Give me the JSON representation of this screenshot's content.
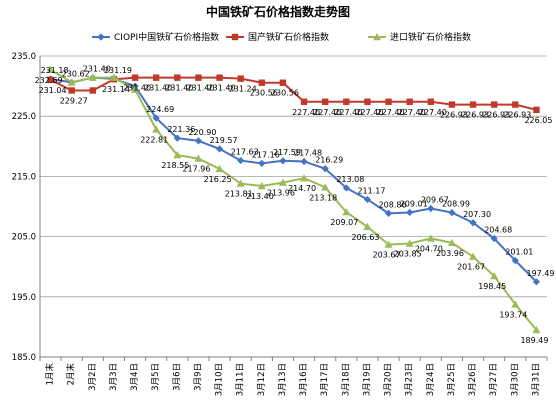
{
  "chart_data": {
    "type": "line",
    "title": "中国铁矿石价格指数走势图",
    "categories": [
      "1月末",
      "2月末",
      "3月2日",
      "3月3日",
      "3月4日",
      "3月5日",
      "3月6日",
      "3月9日",
      "3月10日",
      "3月11日",
      "3月12日",
      "3月13日",
      "3月16日",
      "3月17日",
      "3月18日",
      "3月19日",
      "3月20日",
      "3月23日",
      "3月24日",
      "3月25日",
      "3月26日",
      "3月27日",
      "3月30日",
      "3月31日"
    ],
    "ylim": [
      185.0,
      235.0
    ],
    "yticks": [
      "185.0",
      "195.0",
      "205.0",
      "215.0",
      "225.0",
      "235.0"
    ],
    "grid": "horizontal",
    "legend_position": "top-right",
    "series": [
      {
        "name": "CIOPI中国铁矿石价格指数",
        "color": "#4472c4",
        "marker": "diamond",
        "values": [
          231.18,
          230.62,
          231.4,
          231.19,
          229.99,
          224.69,
          221.36,
          220.9,
          219.57,
          217.63,
          217.16,
          217.59,
          217.48,
          216.29,
          213.08,
          211.17,
          208.86,
          209.01,
          209.67,
          208.99,
          207.3,
          204.68,
          201.01,
          197.49
        ],
        "labels": [
          "231.18",
          "230.62",
          "231.40",
          "231.19",
          "",
          "224.69",
          "221.36",
          "220.90",
          "219.57",
          "217.63",
          "217.16",
          "217.59",
          "217.48",
          "216.29",
          "213.08",
          "211.17",
          "208.86",
          "209.01",
          "209.67",
          "208.99",
          "207.30",
          "204.68",
          "201.01",
          "197.49"
        ]
      },
      {
        "name": "国产铁矿石价格指数",
        "color": "#c0392b",
        "marker": "square",
        "values": [
          231.04,
          229.27,
          229.27,
          231.14,
          231.4,
          231.4,
          231.4,
          231.4,
          231.4,
          231.24,
          230.56,
          230.56,
          227.4,
          227.4,
          227.4,
          227.4,
          227.4,
          227.4,
          227.4,
          226.93,
          226.93,
          226.93,
          226.93,
          226.05
        ],
        "labels": [
          "231.04",
          "229.27",
          "",
          "231.14",
          "231.40",
          "231.40",
          "231.40",
          "231.40",
          "231.40",
          "231.24",
          "230.56",
          "230.56",
          "227.40",
          "227.40",
          "227.40",
          "227.40",
          "227.40",
          "227.40",
          "227.40",
          "226.93",
          "226.93",
          "226.93",
          "226.93",
          "226.05"
        ]
      },
      {
        "name": "进口铁矿石价格指数",
        "color": "#9bbb59",
        "marker": "triangle",
        "values": [
          232.69,
          230.62,
          231.4,
          231.4,
          229.4,
          222.81,
          218.55,
          217.96,
          216.25,
          213.81,
          213.4,
          213.96,
          214.7,
          213.18,
          209.07,
          206.63,
          203.67,
          203.85,
          204.7,
          203.96,
          201.67,
          198.45,
          193.74,
          189.49
        ],
        "labels": [
          "232.69",
          "",
          "",
          "",
          "",
          "222.81",
          "218.55",
          "217.96",
          "216.25",
          "213.81",
          "213.40",
          "213.96",
          "214.70",
          "213.18",
          "209.07",
          "206.63",
          "203.67",
          "203.85",
          "204.70",
          "203.96",
          "201.67",
          "198.45",
          "193.74",
          "189.49"
        ]
      }
    ]
  }
}
